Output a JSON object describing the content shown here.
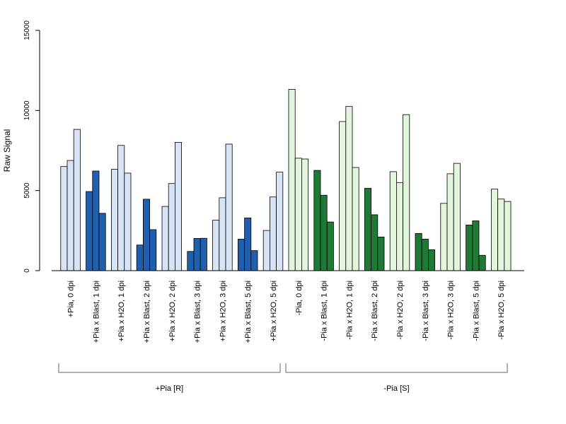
{
  "chart_data": {
    "type": "bar",
    "ylabel": "Raw Signal",
    "ylim": [
      0,
      15000
    ],
    "yticks": [
      "0",
      "5000",
      "10000",
      "15000"
    ],
    "grid": false,
    "categories": [
      "+Pia, 0 dpi",
      "+Pia x Blast, 1 dpi",
      "+Pia x H2O, 1 dpi",
      "+Pia x Blast, 2 dpi",
      "+Pia x H2O, 2 dpi",
      "+Pia x Blast, 3 dpi",
      "+Pia x H2O, 3 dpi",
      "+Pia x Blast, 5 dpi",
      "+Pia x H2O, 5 dpi",
      "-Pia, 0 dpi",
      "-Pia x Blast, 1 dpi",
      "-Pia x H2O, 1 dpi",
      "-Pia x Blast, 2 dpi",
      "-Pia x H2O, 2 dpi",
      "-Pia x Blast, 3 dpi",
      "-Pia x H2O, 3 dpi",
      "-Pia x Blast, 5 dpi",
      "-Pia x H2O, 5 dpi"
    ],
    "replicate_values": [
      [
        6500,
        6880,
        8820
      ],
      [
        4940,
        6220,
        3580
      ],
      [
        6330,
        7820,
        6090
      ],
      [
        1600,
        4460,
        2560
      ],
      [
        4010,
        5440,
        8010
      ],
      [
        1200,
        2010,
        2020
      ],
      [
        3150,
        4550,
        7900
      ],
      [
        1970,
        3290,
        1250
      ],
      [
        2510,
        4600,
        6150
      ],
      [
        11320,
        7020,
        6970
      ],
      [
        6260,
        4710,
        3040
      ],
      [
        9310,
        10250,
        6440
      ],
      [
        5140,
        3490,
        2100
      ],
      [
        6180,
        5500,
        9740
      ],
      [
        2320,
        1970,
        1310
      ],
      [
        4200,
        6050,
        6700
      ],
      [
        2850,
        3110,
        960
      ],
      [
        5090,
        4470,
        4320
      ]
    ],
    "bar_colors": [
      "#d6e4f6",
      "#1f5fae",
      "#d6e4f6",
      "#1f5fae",
      "#d6e4f6",
      "#1f5fae",
      "#d6e4f6",
      "#1f5fae",
      "#d6e4f6",
      "#e3f5dc",
      "#1f7a36",
      "#e3f5dc",
      "#1f7a36",
      "#e3f5dc",
      "#1f7a36",
      "#e3f5dc",
      "#1f7a36",
      "#e3f5dc"
    ],
    "groups": [
      {
        "label": "+Pia [R]",
        "from": 0,
        "to": 8
      },
      {
        "label": "-Pia [S]",
        "from": 9,
        "to": 17
      }
    ]
  }
}
